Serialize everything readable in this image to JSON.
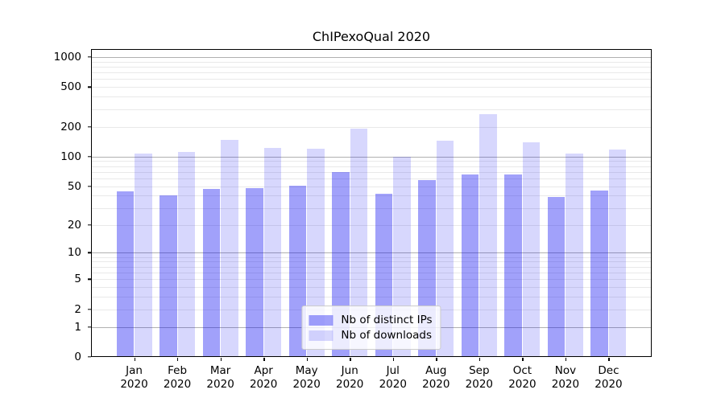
{
  "title": "ChIPexoQual 2020",
  "chart_data": {
    "type": "bar",
    "title": "ChIPexoQual 2020",
    "categories": [
      "Jan",
      "Feb",
      "Mar",
      "Apr",
      "May",
      "Jun",
      "Jul",
      "Aug",
      "Sep",
      "Oct",
      "Nov",
      "Dec"
    ],
    "x_year_label": "2020",
    "series": [
      {
        "name": "Nb of distinct IPs",
        "color": "rgba(8,8,242,0.38)",
        "values": [
          44,
          40,
          47,
          48,
          51,
          70,
          42,
          58,
          66,
          66,
          39,
          45
        ]
      },
      {
        "name": "Nb of downloads",
        "color": "rgba(8,8,242,0.16)",
        "values": [
          107,
          111,
          146,
          123,
          121,
          190,
          100,
          145,
          268,
          139,
          107,
          117
        ]
      }
    ],
    "yscale": "log1p",
    "ylim": [
      0,
      1200
    ],
    "y_tick_values": [
      0,
      1,
      2,
      5,
      10,
      20,
      50,
      100,
      200,
      500,
      1000
    ],
    "y_tick_labels": [
      "0",
      "1",
      "2",
      "5",
      "10",
      "20",
      "50",
      "100",
      "200",
      "500",
      "1000"
    ],
    "grid": {
      "on": true,
      "major_values": [
        1,
        10,
        100,
        1000
      ],
      "minor_values": [
        2,
        3,
        4,
        5,
        6,
        7,
        8,
        9,
        20,
        30,
        40,
        50,
        60,
        70,
        80,
        90,
        200,
        300,
        400,
        500,
        600,
        700,
        800,
        900
      ]
    },
    "legend_position": "lower center",
    "colors": {
      "background": "#ffffff",
      "bar_distinct_ips": "rgba(8,8,242,0.38)",
      "bar_downloads": "rgba(8,8,242,0.16)",
      "grid_major": "#b0b0b0",
      "grid_minor": "#e9e9e9",
      "axis": "#000000",
      "text": "#000000",
      "legend_border": "#cccccc"
    }
  }
}
